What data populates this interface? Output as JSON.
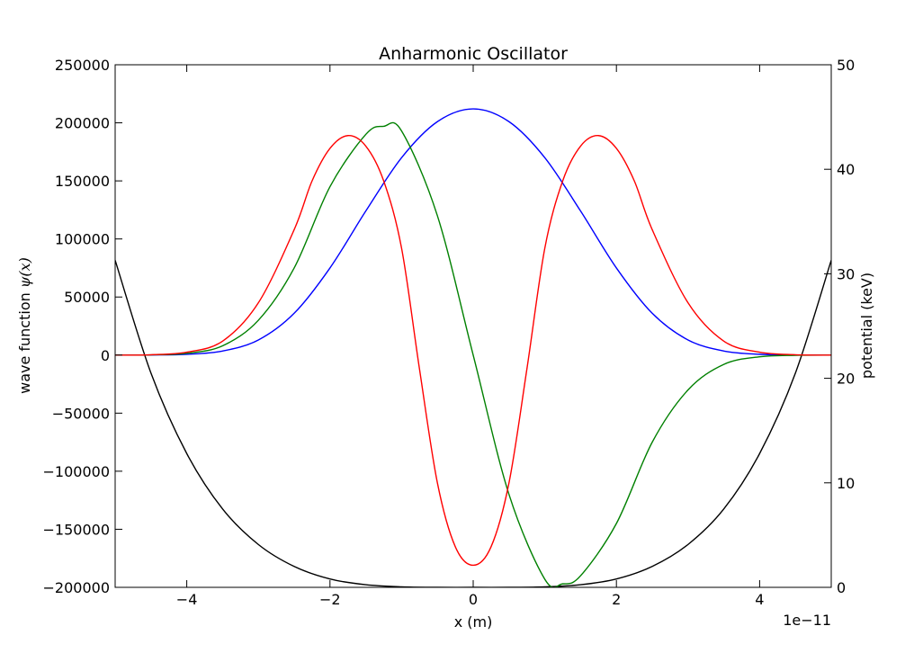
{
  "chart_data": {
    "type": "line",
    "title": "Anharmonic Oscillator",
    "xlabel": "x (m)",
    "ylabel_left_prefix": "wave function ",
    "ylabel_left_math": "ψ(x)",
    "ylabel_right": "potential (keV)",
    "x_offset_text": "1e−11",
    "xlim": [
      -5,
      5
    ],
    "ylim_left": [
      -200000,
      250000
    ],
    "ylim_right": [
      0,
      50
    ],
    "x_ticks": [
      {
        "value": -4,
        "label": "−4"
      },
      {
        "value": -2,
        "label": "−2"
      },
      {
        "value": 0,
        "label": "0"
      },
      {
        "value": 2,
        "label": "2"
      },
      {
        "value": 4,
        "label": "4"
      }
    ],
    "y_left_ticks": [
      {
        "value": 250000,
        "label": "250000"
      },
      {
        "value": 200000,
        "label": "200000"
      },
      {
        "value": 150000,
        "label": "150000"
      },
      {
        "value": 100000,
        "label": "100000"
      },
      {
        "value": 50000,
        "label": "50000"
      },
      {
        "value": 0,
        "label": "0"
      },
      {
        "value": -50000,
        "label": "−50000"
      },
      {
        "value": -100000,
        "label": "−100000"
      },
      {
        "value": -150000,
        "label": "−150000"
      },
      {
        "value": -200000,
        "label": "−200000"
      }
    ],
    "y_right_ticks": [
      {
        "value": 50,
        "label": "50"
      },
      {
        "value": 40,
        "label": "40"
      },
      {
        "value": 30,
        "label": "30"
      },
      {
        "value": 20,
        "label": "20"
      },
      {
        "value": 10,
        "label": "10"
      },
      {
        "value": 0,
        "label": "0"
      }
    ],
    "grid": false,
    "series": [
      {
        "axis": "right",
        "color": "#000000",
        "x": [
          -5.0,
          -4.5,
          -4.0,
          -3.5,
          -3.0,
          -2.5,
          -2.0,
          -1.5,
          -1.0,
          -0.5,
          0.0,
          0.5,
          1.0,
          1.5,
          2.0,
          2.5,
          3.0,
          3.5,
          4.0,
          4.5,
          5.0
        ],
        "y": [
          31.3,
          20.5,
          12.8,
          7.5,
          4.1,
          2.0,
          0.8,
          0.25,
          0.05,
          0.003,
          0.0,
          0.003,
          0.05,
          0.25,
          0.8,
          2.0,
          4.1,
          7.5,
          12.8,
          20.5,
          31.3
        ]
      },
      {
        "axis": "left",
        "color": "#0000ff",
        "x": [
          -5.0,
          -4.5,
          -4.0,
          -3.5,
          -3.0,
          -2.5,
          -2.0,
          -1.5,
          -1.0,
          -0.5,
          0.0,
          0.5,
          1.0,
          1.5,
          2.0,
          2.5,
          3.0,
          3.5,
          4.0,
          4.5,
          5.0
        ],
        "y": [
          0,
          100,
          700,
          3500,
          13000,
          36000,
          75000,
          124000,
          170000,
          201000,
          212000,
          201000,
          170000,
          124000,
          75000,
          36000,
          13000,
          3500,
          700,
          100,
          0
        ]
      },
      {
        "axis": "left",
        "color": "#008000",
        "x": [
          -5.0,
          -4.5,
          -4.0,
          -3.5,
          -3.0,
          -2.5,
          -2.0,
          -1.5,
          -1.25,
          -1.0,
          -0.5,
          0.0,
          0.5,
          1.0,
          1.25,
          1.5,
          2.0,
          2.5,
          3.0,
          3.5,
          4.0,
          4.5,
          5.0
        ],
        "y": [
          0,
          200,
          1500,
          8000,
          30000,
          75000,
          145000,
          190000,
          197000,
          193000,
          120000,
          0,
          -120000,
          -193000,
          -197000,
          -190000,
          -145000,
          -75000,
          -30000,
          -8000,
          -1500,
          -200,
          0
        ]
      },
      {
        "axis": "left",
        "color": "#ff0000",
        "x": [
          -5.0,
          -4.5,
          -4.0,
          -3.5,
          -3.0,
          -2.5,
          -2.25,
          -2.0,
          -1.75,
          -1.5,
          -1.25,
          -1.0,
          -0.75,
          -0.5,
          -0.25,
          0.0,
          0.25,
          0.5,
          0.75,
          1.0,
          1.25,
          1.5,
          1.75,
          2.0,
          2.25,
          2.5,
          3.0,
          3.5,
          4.0,
          4.5,
          5.0
        ],
        "y": [
          0,
          300,
          2500,
          12000,
          45000,
          108000,
          150000,
          178000,
          189000,
          180000,
          150000,
          92000,
          -12000,
          -110000,
          -165000,
          -181000,
          -165000,
          -110000,
          -12000,
          92000,
          150000,
          180000,
          189000,
          178000,
          150000,
          108000,
          45000,
          12000,
          2500,
          300,
          0
        ]
      }
    ]
  }
}
